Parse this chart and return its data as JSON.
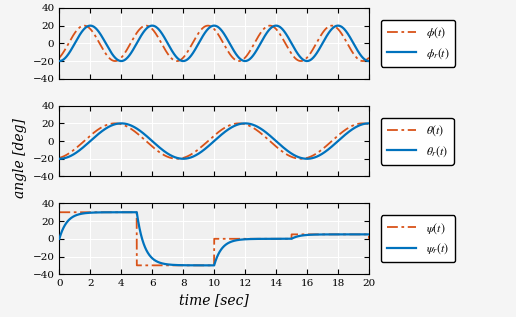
{
  "xlim": [
    0,
    20
  ],
  "ylim": [
    -40,
    40
  ],
  "yticks": [
    -40,
    -20,
    0,
    20,
    40
  ],
  "xticks": [
    0,
    2,
    4,
    6,
    8,
    10,
    12,
    14,
    16,
    18,
    20
  ],
  "xlabel": "time [sec]",
  "ylabel": "angle [deg]",
  "blue_color": "#0072BD",
  "orange_color": "#D95319",
  "bg_color": "#f0f0f0",
  "grid_color": "#ffffff",
  "phi_amp": 20,
  "phi_period": 4.0,
  "theta_amp": 20,
  "theta_period": 8.0,
  "psi_steps": [
    30,
    -30,
    0,
    5
  ],
  "psi_times": [
    0,
    5,
    10,
    15,
    20
  ],
  "psi_tau": 0.5,
  "ref_lead": 0.4
}
